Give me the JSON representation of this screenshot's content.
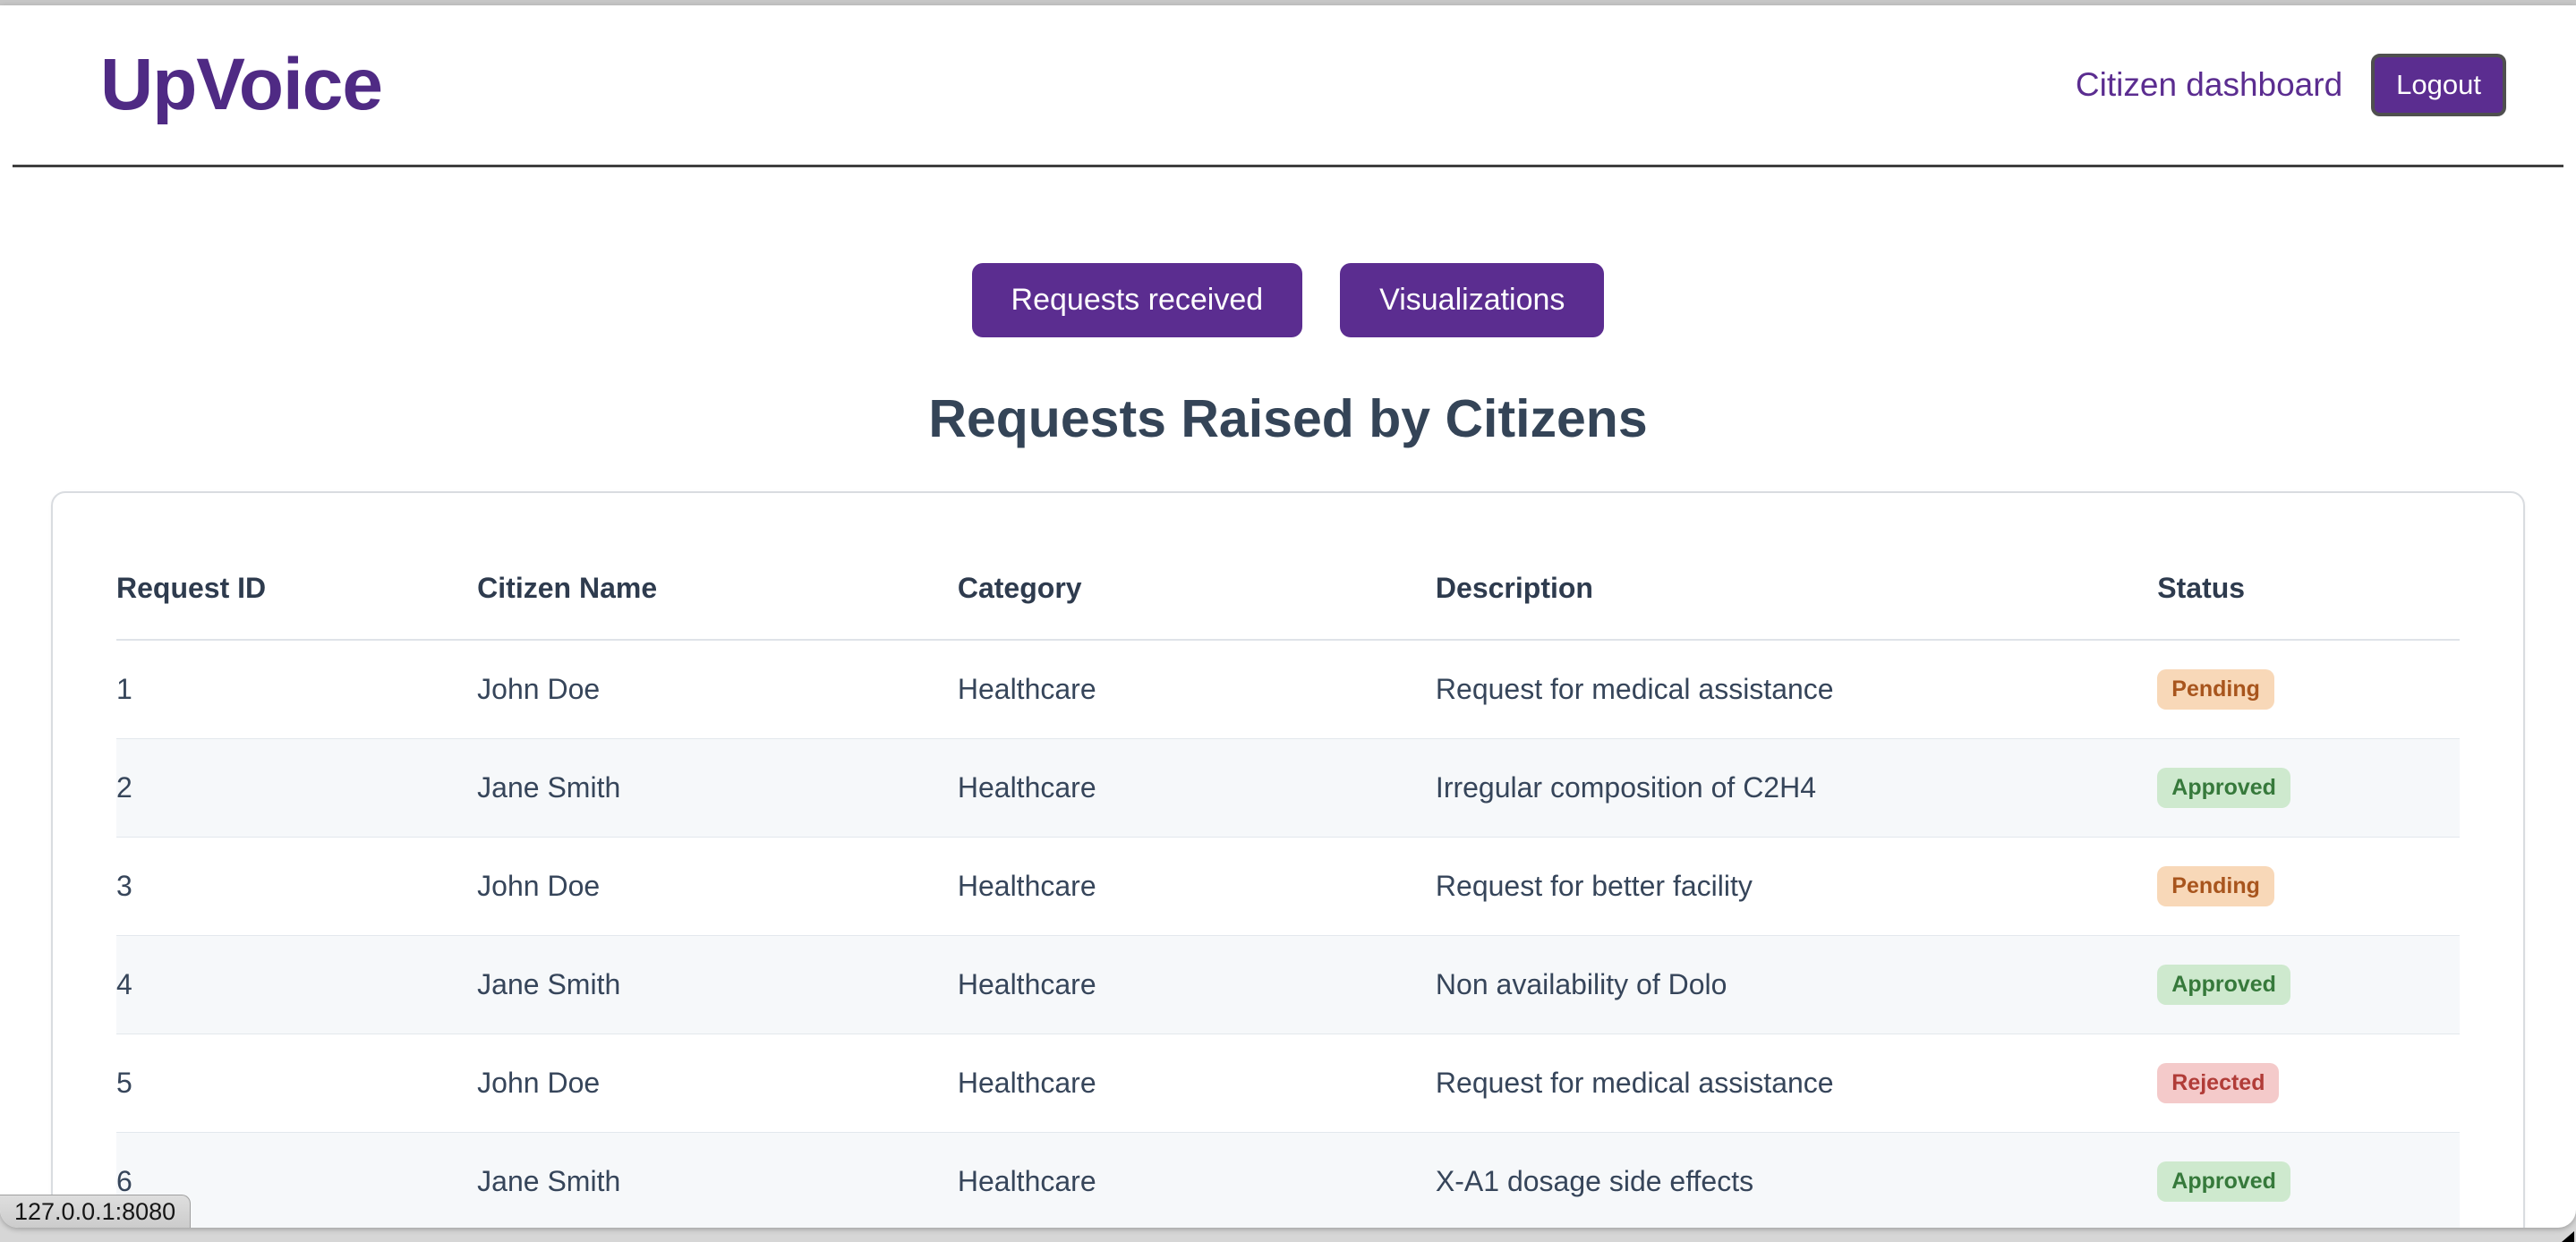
{
  "brand": {
    "name": "UpVoice"
  },
  "nav": {
    "dashboard_link": "Citizen dashboard",
    "logout_label": "Logout"
  },
  "tabs": [
    {
      "label": "Requests received"
    },
    {
      "label": "Visualizations"
    }
  ],
  "page": {
    "title": "Requests Raised by Citizens"
  },
  "table": {
    "columns": [
      "Request ID",
      "Citizen Name",
      "Category",
      "Description",
      "Status"
    ],
    "rows": [
      {
        "id": "1",
        "name": "John Doe",
        "category": "Healthcare",
        "description": "Request for medical assistance",
        "status": "Pending"
      },
      {
        "id": "2",
        "name": "Jane Smith",
        "category": "Healthcare",
        "description": "Irregular composition of C2H4",
        "status": "Approved"
      },
      {
        "id": "3",
        "name": "John Doe",
        "category": "Healthcare",
        "description": "Request for better facility",
        "status": "Pending"
      },
      {
        "id": "4",
        "name": "Jane Smith",
        "category": "Healthcare",
        "description": "Non availability of Dolo",
        "status": "Approved"
      },
      {
        "id": "5",
        "name": "John Doe",
        "category": "Healthcare",
        "description": "Request for medical assistance",
        "status": "Rejected"
      },
      {
        "id": "6",
        "name": "Jane Smith",
        "category": "Healthcare",
        "description": "X-A1 dosage side effects",
        "status": "Approved"
      }
    ]
  },
  "statusbar": {
    "url": "127.0.0.1:8080"
  },
  "colors": {
    "accent_purple": "#5b2d90",
    "logo_purple": "#4f2a84",
    "title_text": "#344457",
    "status_pending_bg": "#f8d8b8",
    "status_pending_text": "#a8551d",
    "status_approved_bg": "#cee9ce",
    "status_approved_text": "#36793b",
    "status_rejected_bg": "#f4caca",
    "status_rejected_text": "#b13c38"
  }
}
